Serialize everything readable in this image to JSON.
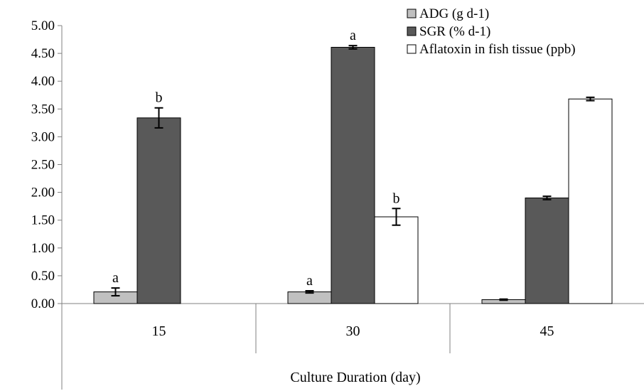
{
  "chart_data": {
    "type": "bar",
    "title": "",
    "xlabel": "Culture Duration (day)",
    "ylabel": "",
    "ylim": [
      0,
      5
    ],
    "ytick_step": 0.5,
    "yticks": [
      "0.00",
      "0.50",
      "1.00",
      "1.50",
      "2.00",
      "2.50",
      "3.00",
      "3.50",
      "4.00",
      "4.50",
      "5.00"
    ],
    "categories": [
      "15",
      "30",
      "45"
    ],
    "legend_position": "top-right",
    "series": [
      {
        "name": "ADG (g d-1)",
        "color": "#c0c0c0",
        "values": [
          0.21,
          0.21,
          0.07
        ],
        "errors": [
          0.07,
          0.02,
          0.01
        ],
        "labels": [
          "a",
          "a",
          ""
        ]
      },
      {
        "name": "SGR (% d-1)",
        "color": "#595959",
        "values": [
          3.34,
          4.61,
          1.9
        ],
        "errors": [
          0.18,
          0.03,
          0.03
        ],
        "labels": [
          "b",
          "a",
          ""
        ]
      },
      {
        "name": "Aflatoxin in fish tissue (ppb)",
        "color": "#ffffff",
        "values": [
          null,
          1.56,
          3.68
        ],
        "errors": [
          null,
          0.15,
          0.03
        ],
        "labels": [
          "",
          "b",
          ""
        ]
      }
    ]
  }
}
